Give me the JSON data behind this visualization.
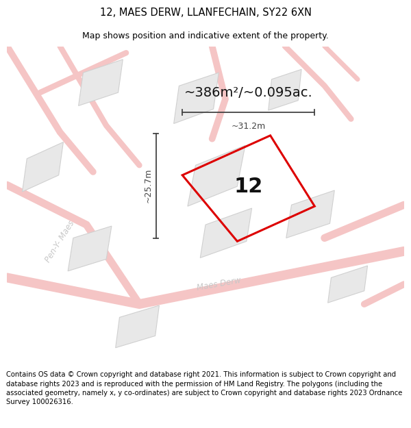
{
  "title": "12, MAES DERW, LLANFECHAIN, SY22 6XN",
  "subtitle": "Map shows position and indicative extent of the property.",
  "area_label": "~386m²/~0.095ac.",
  "property_number": "12",
  "dim_width": "~31.2m",
  "dim_height": "~25.7m",
  "footer": "Contains OS data © Crown copyright and database right 2021. This information is subject to Crown copyright and database rights 2023 and is reproduced with the permission of HM Land Registry. The polygons (including the associated geometry, namely x, y co-ordinates) are subject to Crown copyright and database rights 2023 Ordnance Survey 100026316.",
  "bg_color": "#ffffff",
  "road_color": "#f5c5c5",
  "building_fill": "#e8e8e8",
  "building_edge": "#d0d0d0",
  "property_edge": "#dd0000",
  "road_label_color": "#c0c0c0",
  "dim_color": "#444444",
  "title_fontsize": 10.5,
  "subtitle_fontsize": 9,
  "area_fontsize": 15,
  "property_num_fontsize": 20,
  "footer_fontsize": 7.2
}
